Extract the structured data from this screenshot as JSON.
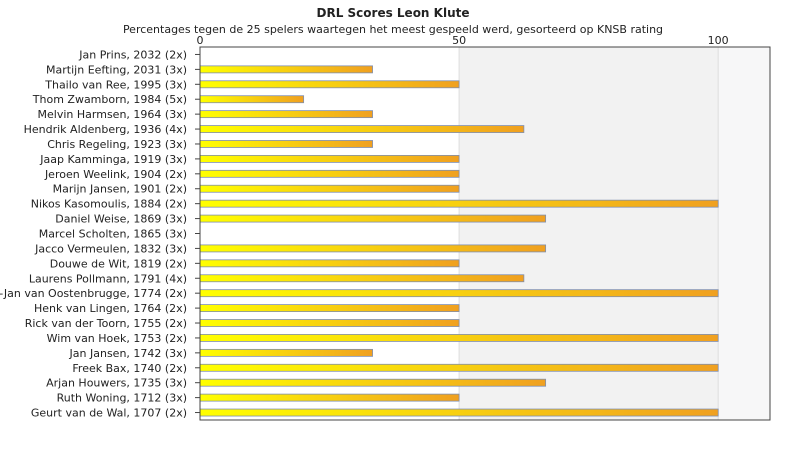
{
  "chart_data": {
    "type": "bar",
    "orientation": "horizontal",
    "title": "DRL Scores Leon Klute",
    "subtitle": "Percentages tegen de 25 spelers waartegen het meest gespeeld werd, gesorteerd op KNSB rating",
    "categories": [
      "Jan Prins, 2032 (2x)",
      "Martijn Eefting, 2031 (3x)",
      "Thailo van Ree, 1995 (3x)",
      "Thom Zwamborn, 1984 (5x)",
      "Melvin Harmsen, 1964 (3x)",
      "Hendrik Aldenberg, 1936 (4x)",
      "Chris Regeling, 1923 (3x)",
      "Jaap Kamminga, 1919 (3x)",
      "Jeroen Weelink, 1904 (2x)",
      "Marijn Jansen, 1901 (2x)",
      "Nikos Kasomoulis, 1884 (2x)",
      "Daniel Weise, 1869 (3x)",
      "Marcel Scholten, 1865 (3x)",
      "Jacco Vermeulen, 1832 (3x)",
      "Douwe de Wit, 1819 (2x)",
      "Laurens Pollmann, 1791 (4x)",
      "Gert-Jan van Oostenbrugge, 1774 (2x)",
      "Henk van Lingen, 1764 (2x)",
      "Rick van der Toorn, 1755 (2x)",
      "Wim van Hoek, 1753 (2x)",
      "Jan Jansen, 1742 (3x)",
      "Freek Bax, 1740 (2x)",
      "Arjan Houwers, 1735 (3x)",
      "Ruth Woning, 1712 (3x)",
      "Geurt van de Wal, 1707 (2x)"
    ],
    "values": [
      0,
      33.3,
      50,
      20,
      33.3,
      62.5,
      33.3,
      50,
      50,
      50,
      100,
      66.7,
      0,
      66.7,
      50,
      62.5,
      100,
      50,
      50,
      100,
      33.3,
      100,
      66.7,
      50,
      100
    ],
    "xlim": [
      0,
      110
    ],
    "xticks": [
      "0",
      "50",
      "100"
    ],
    "xtick_values": [
      0,
      50,
      100
    ],
    "grid": true,
    "colors": {
      "bar_start": "#ffff00",
      "bar_end": "#f0a020",
      "bar_border": "#7f8fb0",
      "band": "#f2f2f2",
      "band_light": "#f7f7f8",
      "frame": "#444444"
    }
  }
}
